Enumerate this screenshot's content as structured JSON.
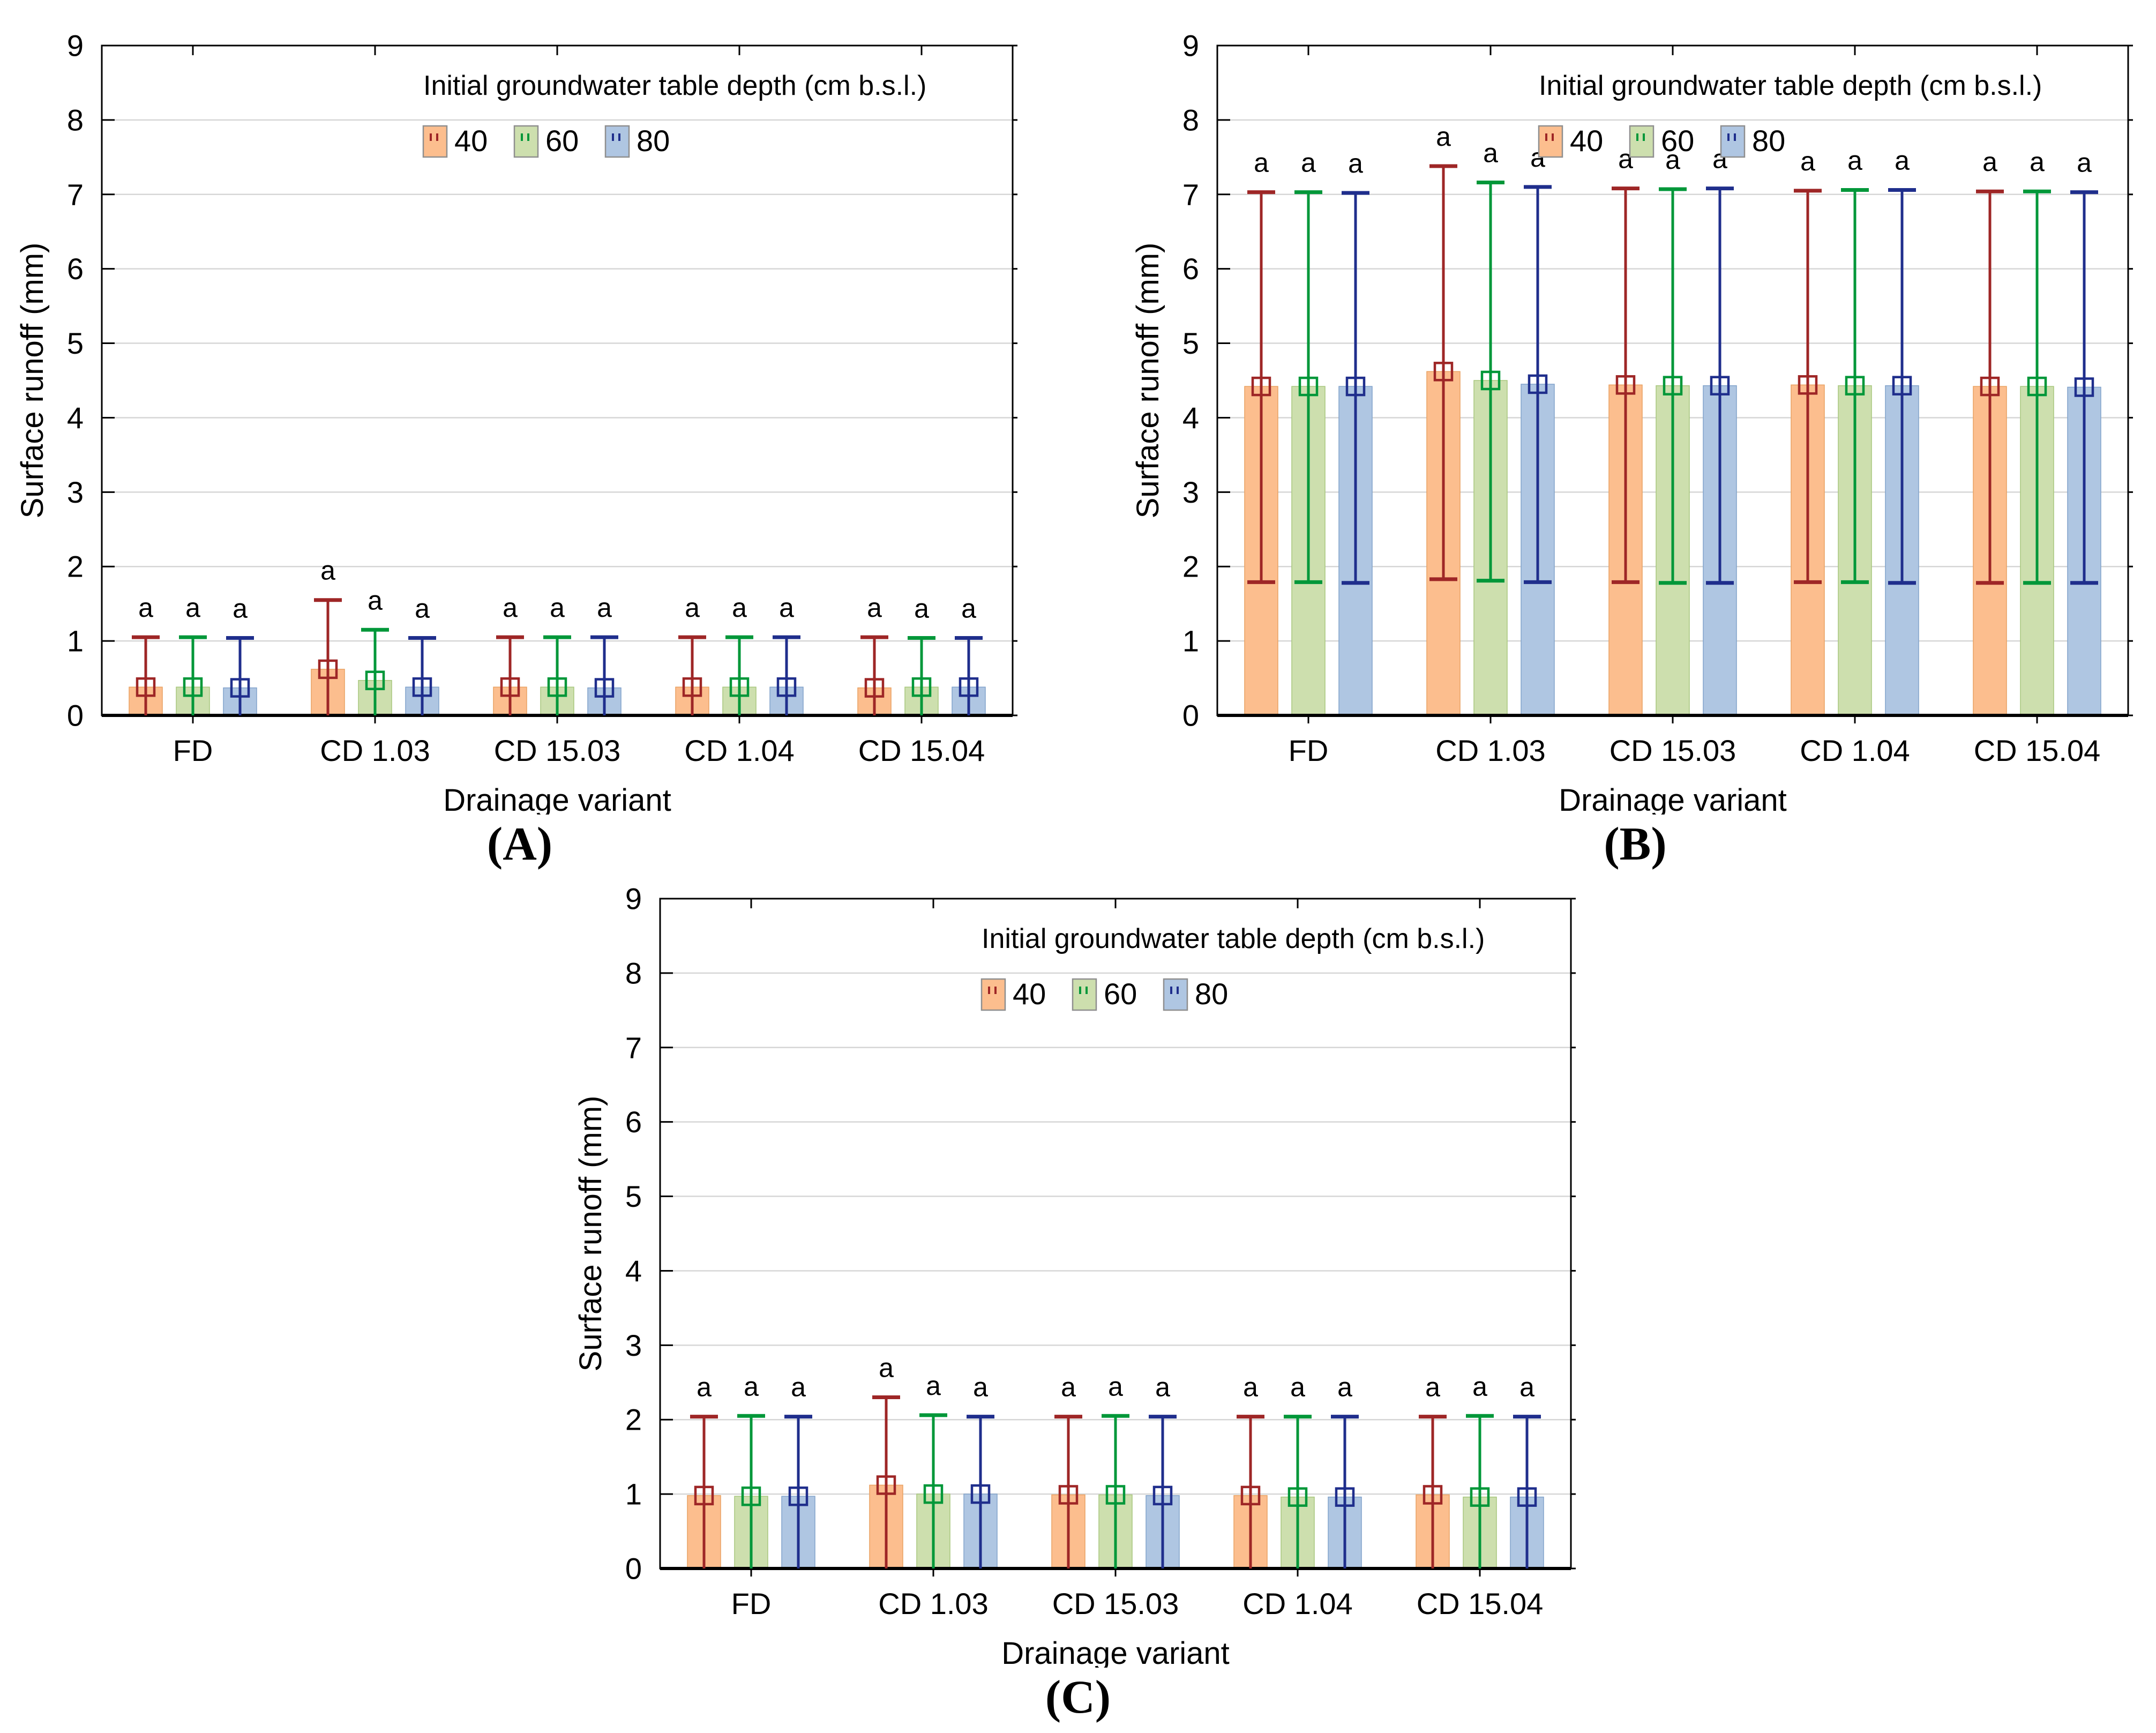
{
  "figure": {
    "captions": [
      "(A)",
      "(B)",
      "(C)"
    ]
  },
  "styles": {
    "grid_color": "#D6D6D6",
    "axis_color": "#000000",
    "text_color": "#000000",
    "swatch_border": "#8F8F8F",
    "background": "#FFFFFF"
  },
  "palette": {
    "40": {
      "fill": "#FCBE8E",
      "edge": "#E9A263",
      "err": "#9E2626"
    },
    "60": {
      "fill": "#CDDFAE",
      "edge": "#A8C77E",
      "err": "#009739"
    },
    "80": {
      "fill": "#AFC6E2",
      "edge": "#82A3CB",
      "err": "#1F2E8C"
    }
  },
  "chart_data": [
    {
      "id": "A",
      "type": "bar",
      "title": "",
      "ylabel": "Surface runoff (mm)",
      "xlabel": "Drainage variant",
      "ylim": [
        0,
        9
      ],
      "yticks": [
        0,
        1,
        2,
        3,
        4,
        5,
        6,
        7,
        8,
        9
      ],
      "grid": true,
      "legend_position": "top-inside",
      "legend_title": "Initial groundwater table depth (cm b.s.l.)",
      "categories": [
        "FD",
        "CD 1.03",
        "CD 15.03",
        "CD 1.04",
        "CD 15.04"
      ],
      "sig_label": "a",
      "series": [
        {
          "name": "40",
          "values": [
            0.38,
            0.62,
            0.38,
            0.38,
            0.37
          ],
          "err_low": [
            0,
            0,
            0,
            0,
            0
          ],
          "err_high": [
            1.05,
            1.55,
            1.05,
            1.05,
            1.05
          ]
        },
        {
          "name": "60",
          "values": [
            0.38,
            0.47,
            0.38,
            0.38,
            0.38
          ],
          "err_low": [
            0,
            0,
            0,
            0,
            0
          ],
          "err_high": [
            1.05,
            1.15,
            1.05,
            1.05,
            1.04
          ]
        },
        {
          "name": "80",
          "values": [
            0.37,
            0.38,
            0.37,
            0.38,
            0.38
          ],
          "err_low": [
            0,
            0,
            0,
            0,
            0
          ],
          "err_high": [
            1.04,
            1.04,
            1.05,
            1.05,
            1.04
          ]
        }
      ]
    },
    {
      "id": "B",
      "type": "bar",
      "title": "",
      "ylabel": "Surface runoff (mm)",
      "xlabel": "Drainage variant",
      "ylim": [
        0,
        9
      ],
      "yticks": [
        0,
        1,
        2,
        3,
        4,
        5,
        6,
        7,
        8,
        9
      ],
      "grid": true,
      "legend_position": "top-inside",
      "legend_title": "Initial groundwater table depth (cm b.s.l.)",
      "categories": [
        "FD",
        "CD 1.03",
        "CD 15.03",
        "CD 1.04",
        "CD 15.04"
      ],
      "sig_label": "a",
      "series": [
        {
          "name": "40",
          "values": [
            4.42,
            4.62,
            4.44,
            4.44,
            4.42
          ],
          "err_low": [
            1.79,
            1.83,
            1.79,
            1.79,
            1.78
          ],
          "err_high": [
            7.03,
            7.38,
            7.08,
            7.05,
            7.04
          ]
        },
        {
          "name": "60",
          "values": [
            4.42,
            4.5,
            4.43,
            4.43,
            4.42
          ],
          "err_low": [
            1.79,
            1.81,
            1.78,
            1.79,
            1.78
          ],
          "err_high": [
            7.03,
            7.16,
            7.07,
            7.06,
            7.04
          ]
        },
        {
          "name": "80",
          "values": [
            4.42,
            4.45,
            4.43,
            4.43,
            4.41
          ],
          "err_low": [
            1.78,
            1.79,
            1.78,
            1.78,
            1.78
          ],
          "err_high": [
            7.02,
            7.1,
            7.08,
            7.06,
            7.03
          ]
        }
      ]
    },
    {
      "id": "C",
      "type": "bar",
      "title": "",
      "ylabel": "Surface runoff (mm)",
      "xlabel": "Drainage variant",
      "ylim": [
        0,
        9
      ],
      "yticks": [
        0,
        1,
        2,
        3,
        4,
        5,
        6,
        7,
        8,
        9
      ],
      "grid": true,
      "legend_position": "top-inside",
      "legend_title": "Initial groundwater table depth (cm b.s.l.)",
      "categories": [
        "FD",
        "CD 1.03",
        "CD 15.03",
        "CD 1.04",
        "CD 15.04"
      ],
      "sig_label": "a",
      "series": [
        {
          "name": "40",
          "values": [
            0.98,
            1.12,
            0.99,
            0.98,
            0.99
          ],
          "err_low": [
            0,
            0,
            0,
            0,
            0
          ],
          "err_high": [
            2.04,
            2.3,
            2.04,
            2.04,
            2.04
          ]
        },
        {
          "name": "60",
          "values": [
            0.97,
            1.0,
            0.99,
            0.96,
            0.96
          ],
          "err_low": [
            0,
            0,
            0,
            0,
            0
          ],
          "err_high": [
            2.05,
            2.06,
            2.05,
            2.04,
            2.05
          ]
        },
        {
          "name": "80",
          "values": [
            0.97,
            1.0,
            0.98,
            0.96,
            0.96
          ],
          "err_low": [
            0,
            0,
            0,
            0,
            0
          ],
          "err_high": [
            2.04,
            2.04,
            2.04,
            2.04,
            2.04
          ]
        }
      ]
    }
  ]
}
